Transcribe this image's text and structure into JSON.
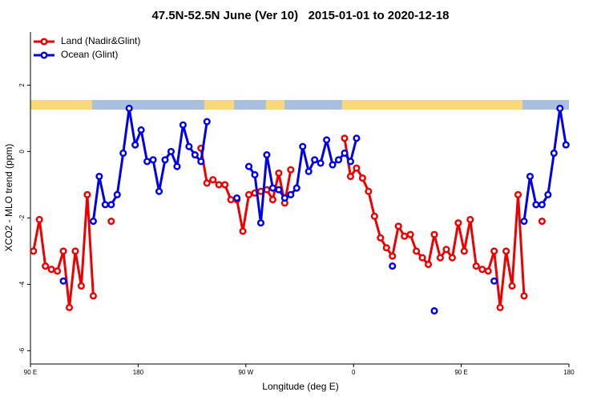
{
  "chart_data": {
    "type": "line",
    "title": "47.5N-52.5N June (Ver 10)   2015-01-01 to 2020-12-18",
    "xlabel": "Longitude (deg E)",
    "ylabel": "XCO2 - MLO trend (ppm)",
    "xlim": [
      90,
      540
    ],
    "xticks": [
      {
        "value": 90,
        "label": "90 E"
      },
      {
        "value": 180,
        "label": "180"
      },
      {
        "value": 270,
        "label": "90 W"
      },
      {
        "value": 360,
        "label": "0"
      },
      {
        "value": 450,
        "label": "90 E"
      },
      {
        "value": 540,
        "label": "180"
      }
    ],
    "ylim": [
      -6.4,
      3.6
    ],
    "yticks": [
      -6,
      -4,
      -2,
      0,
      2
    ],
    "legend": "topleft",
    "x": [
      92.5,
      97.5,
      102.5,
      107.5,
      112.5,
      117.5,
      122.5,
      127.5,
      132.5,
      137.5,
      142.5,
      147.5,
      152.5,
      157.5,
      162.5,
      167.5,
      172.5,
      177.5,
      182.5,
      187.5,
      192.5,
      197.5,
      202.5,
      207.5,
      212.5,
      217.5,
      222.5,
      227.5,
      232.5,
      237.5,
      242.5,
      247.5,
      252.5,
      257.5,
      262.5,
      267.5,
      272.5,
      277.5,
      282.5,
      287.5,
      292.5,
      297.5,
      302.5,
      307.5,
      312.5,
      317.5,
      322.5,
      327.5,
      332.5,
      337.5,
      342.5,
      347.5,
      352.5,
      357.5,
      362.5,
      367.5,
      372.5,
      377.5,
      382.5,
      387.5,
      392.5,
      397.5,
      402.5,
      407.5,
      412.5,
      417.5,
      422.5,
      427.5,
      432.5,
      437.5,
      442.5,
      447.5,
      452.5,
      457.5,
      462.5,
      467.5,
      472.5,
      477.5,
      482.5,
      487.5,
      492.5,
      497.5,
      502.5,
      507.5,
      512.5,
      517.5,
      522.5,
      527.5,
      532.5,
      537.5
    ],
    "series": [
      {
        "name": "Land (Nadir&Glint)",
        "color": "#ee0000",
        "values": [
          -3.0,
          -2.05,
          -3.45,
          -3.55,
          -3.6,
          -3.0,
          -4.7,
          -3.0,
          -4.05,
          -1.3,
          -4.35,
          null,
          null,
          -2.1,
          null,
          null,
          null,
          null,
          null,
          null,
          null,
          null,
          null,
          null,
          null,
          null,
          null,
          null,
          0.1,
          -0.95,
          -0.85,
          -1.0,
          -1.0,
          -1.45,
          -1.45,
          -2.4,
          -1.3,
          -1.25,
          -1.2,
          -1.15,
          -1.45,
          -0.65,
          -1.55,
          -0.55,
          null,
          null,
          null,
          null,
          null,
          null,
          null,
          null,
          0.4,
          -0.75,
          -0.5,
          -0.8,
          -1.2,
          -1.95,
          -2.6,
          -2.9,
          -3.15,
          -2.25,
          -2.55,
          -2.5,
          -3.0,
          -3.2,
          -3.4,
          -2.5,
          -3.2,
          -2.95,
          -3.2,
          -2.15,
          -3.0,
          -2.05,
          -3.45,
          -3.55,
          -3.6,
          -3.0,
          -4.7,
          -3.0,
          -4.05,
          -1.3,
          -4.35,
          null,
          null,
          -2.1,
          null,
          null,
          null,
          null
        ]
      },
      {
        "name": "Ocean (Glint)",
        "color": "#0000ee",
        "values": [
          null,
          null,
          null,
          null,
          null,
          -3.9,
          null,
          null,
          null,
          null,
          -2.1,
          -0.75,
          -1.6,
          -1.6,
          -1.3,
          -0.05,
          1.3,
          0.2,
          0.65,
          -0.3,
          -0.25,
          -1.2,
          -0.25,
          0,
          -0.45,
          0.8,
          0.15,
          -0.1,
          -0.3,
          0.9,
          null,
          null,
          null,
          null,
          -1.4,
          null,
          -0.45,
          -0.7,
          -2.15,
          -0.1,
          -1.1,
          -1.15,
          -1.4,
          -1.3,
          -1.1,
          0.15,
          -0.6,
          -0.25,
          -0.35,
          0.35,
          -0.4,
          -0.25,
          -0.05,
          -0.3,
          0.4,
          null,
          null,
          null,
          null,
          null,
          -3.45,
          null,
          null,
          null,
          null,
          null,
          null,
          -4.8,
          null,
          null,
          null,
          null,
          null,
          null,
          null,
          null,
          null,
          -3.9,
          null,
          null,
          null,
          null,
          -2.1,
          -0.75,
          -1.6,
          -1.6,
          -1.3,
          -0.05,
          1.3,
          0.2
        ]
      }
    ]
  }
}
